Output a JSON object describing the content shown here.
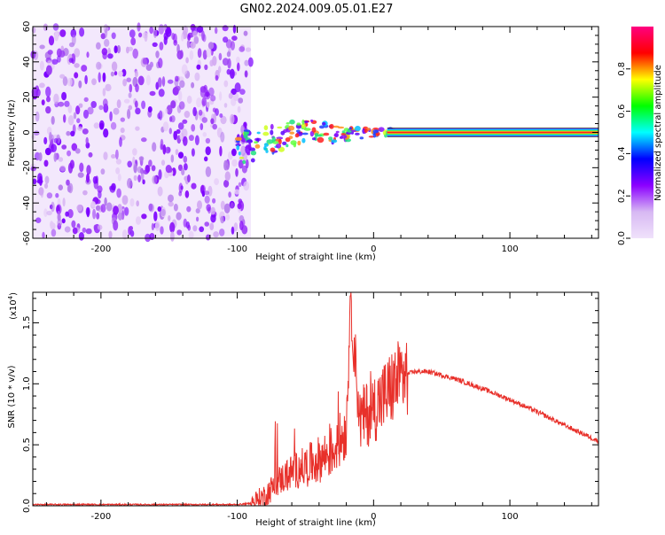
{
  "figure": {
    "title": "GN02.2024.009.05.01.E27"
  },
  "chart_data": [
    {
      "id": "spectrogram",
      "type": "heatmap",
      "title": "",
      "xlabel": "Height of straight line (km)",
      "ylabel": "Frequency (Hz)",
      "xlim": [
        -250,
        165
      ],
      "ylim": [
        -60,
        60
      ],
      "x_ticks": [
        -200,
        -100,
        0,
        100
      ],
      "y_ticks": [
        60,
        40,
        20,
        0,
        -20,
        -40,
        -60
      ],
      "grid": false,
      "colorbar": {
        "label": "Normalized spectral amplitude",
        "range": [
          0.0,
          1.0
        ],
        "ticks": [
          "0.0",
          "0.2",
          "0.4",
          "0.6",
          "0.8"
        ],
        "colormap": [
          "#f0e2fb",
          "#d7b8f3",
          "#8b00ff",
          "#0000ff",
          "#00ffff",
          "#00ff00",
          "#ffff00",
          "#ff0000",
          "#ff0080"
        ]
      },
      "regions": [
        {
          "description": "broadband noise",
          "x_range": [
            -250,
            -90
          ],
          "freq_range": [
            -60,
            60
          ],
          "amplitude": [
            0.0,
            0.2
          ]
        },
        {
          "description": "signal band",
          "x_range": [
            -90,
            165
          ],
          "center_freq": 0
        }
      ],
      "signal_band_center_hz": [
        {
          "x": -100,
          "y": -8
        },
        {
          "x": -90,
          "y": -7
        },
        {
          "x": -80,
          "y": -5
        },
        {
          "x": -70,
          "y": -3
        },
        {
          "x": -60,
          "y": -1
        },
        {
          "x": -50,
          "y": 2
        },
        {
          "x": -40,
          "y": 1
        },
        {
          "x": -30,
          "y": -1
        },
        {
          "x": -20,
          "y": -1
        },
        {
          "x": -10,
          "y": 0
        },
        {
          "x": 0,
          "y": 0
        },
        {
          "x": 50,
          "y": 0
        },
        {
          "x": 100,
          "y": 0
        },
        {
          "x": 165,
          "y": 0
        }
      ]
    },
    {
      "id": "snr",
      "type": "line",
      "title": "",
      "xlabel": "Height of straight line (km)",
      "ylabel": "SNR (10 * v/v)",
      "y_multiplier_label": "(x10",
      "y_multiplier_exponent": "4",
      "xlim": [
        -250,
        165
      ],
      "ylim": [
        0.0,
        1.75
      ],
      "x_ticks": [
        -200,
        -100,
        0,
        100
      ],
      "y_ticks": [
        "0.0",
        "0.5",
        "1.0",
        "1.5"
      ],
      "grid": false,
      "series": [
        {
          "color": "#e8302a",
          "points": [
            {
              "x": -250,
              "y": 0.01
            },
            {
              "x": -200,
              "y": 0.01
            },
            {
              "x": -150,
              "y": 0.01
            },
            {
              "x": -100,
              "y": 0.01
            },
            {
              "x": -90,
              "y": 0.02
            },
            {
              "x": -80,
              "y": 0.08
            },
            {
              "x": -70,
              "y": 0.2
            },
            {
              "x": -60,
              "y": 0.28
            },
            {
              "x": -50,
              "y": 0.32
            },
            {
              "x": -40,
              "y": 0.38
            },
            {
              "x": -30,
              "y": 0.45
            },
            {
              "x": -20,
              "y": 0.62
            },
            {
              "x": -17,
              "y": 1.7
            },
            {
              "x": -10,
              "y": 0.7
            },
            {
              "x": 0,
              "y": 0.8
            },
            {
              "x": 10,
              "y": 0.92
            },
            {
              "x": 20,
              "y": 1.06
            },
            {
              "x": 30,
              "y": 1.1
            },
            {
              "x": 40,
              "y": 1.1
            },
            {
              "x": 60,
              "y": 1.04
            },
            {
              "x": 80,
              "y": 0.96
            },
            {
              "x": 100,
              "y": 0.87
            },
            {
              "x": 120,
              "y": 0.77
            },
            {
              "x": 140,
              "y": 0.66
            },
            {
              "x": 165,
              "y": 0.53
            }
          ]
        }
      ]
    }
  ]
}
